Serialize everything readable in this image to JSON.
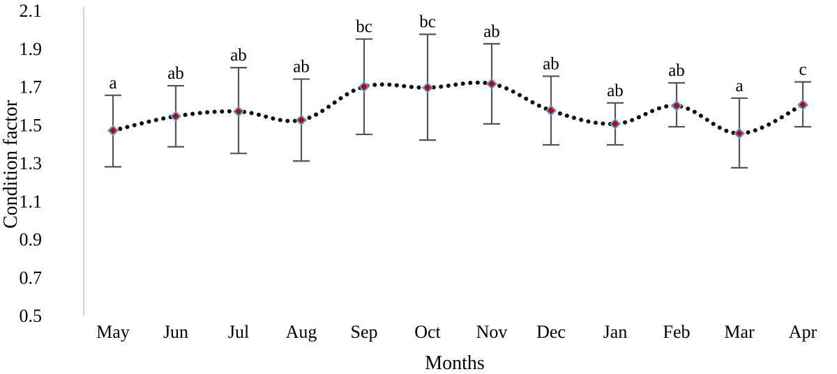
{
  "chart_data": {
    "type": "line",
    "title": "",
    "xlabel": "Months",
    "ylabel": "Condition factor",
    "ylim": [
      0.5,
      2.1
    ],
    "yticks": [
      "0.5",
      "0.7",
      "0.9",
      "1.1",
      "1.3",
      "1.5",
      "1.7",
      "1.9",
      "2.1"
    ],
    "categories": [
      "May",
      "Jun",
      "Jul",
      "Aug",
      "Sep",
      "Oct",
      "Nov",
      "Dec",
      "Jan",
      "Feb",
      "Mar",
      "Apr"
    ],
    "series": [
      {
        "name": "Condition factor",
        "values": [
          1.47,
          1.545,
          1.57,
          1.525,
          1.7,
          1.695,
          1.715,
          1.575,
          1.505,
          1.6,
          1.455,
          1.605
        ],
        "error_low": [
          1.28,
          1.385,
          1.35,
          1.31,
          1.45,
          1.42,
          1.505,
          1.395,
          1.395,
          1.49,
          1.275,
          1.49
        ],
        "error_high": [
          1.655,
          1.705,
          1.8,
          1.74,
          1.95,
          1.975,
          1.925,
          1.755,
          1.615,
          1.72,
          1.64,
          1.725
        ],
        "significance": [
          "a",
          "ab",
          "ab",
          "ab",
          "bc",
          "bc",
          "ab",
          "ab",
          "ab",
          "ab",
          "a",
          "c"
        ]
      }
    ],
    "colors": {
      "line": "#111111",
      "marker_fill": "#c00000",
      "marker_stroke": "#5b9bd5",
      "error_bar": "#555555",
      "axis": "#a6c8e6"
    }
  }
}
